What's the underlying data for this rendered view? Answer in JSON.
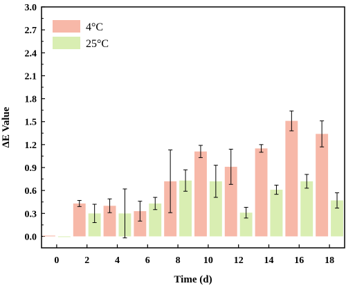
{
  "chart_data": {
    "type": "bar",
    "categories": [
      "0",
      "2",
      "4",
      "6",
      "8",
      "10",
      "12",
      "14",
      "16",
      "18"
    ],
    "series": [
      {
        "name": "4°C",
        "color": "#F7B8A8",
        "values": [
          0.01,
          0.43,
          0.4,
          0.33,
          0.72,
          1.11,
          0.91,
          1.15,
          1.51,
          1.34
        ],
        "errors": [
          0.0,
          0.04,
          0.09,
          0.13,
          0.41,
          0.08,
          0.23,
          0.05,
          0.13,
          0.17
        ]
      },
      {
        "name": "25°C",
        "color": "#D9EEB2",
        "values": [
          0.0,
          0.3,
          0.3,
          0.43,
          0.73,
          0.72,
          0.31,
          0.61,
          0.72,
          0.47
        ]
      }
    ],
    "errors_25C": [
      0.0,
      0.12,
      0.32,
      0.08,
      0.14,
      0.21,
      0.07,
      0.06,
      0.09,
      0.1
    ],
    "xlabel": "Time (d)",
    "ylabel": "ΔE Value",
    "ylim": [
      -0.15,
      3.0
    ],
    "yticks": [
      "0.0",
      "0.3",
      "0.6",
      "0.9",
      "1.2",
      "1.5",
      "1.8",
      "2.1",
      "2.4",
      "2.7",
      "3.0"
    ],
    "legend_position": "top-left",
    "grid": false
  }
}
